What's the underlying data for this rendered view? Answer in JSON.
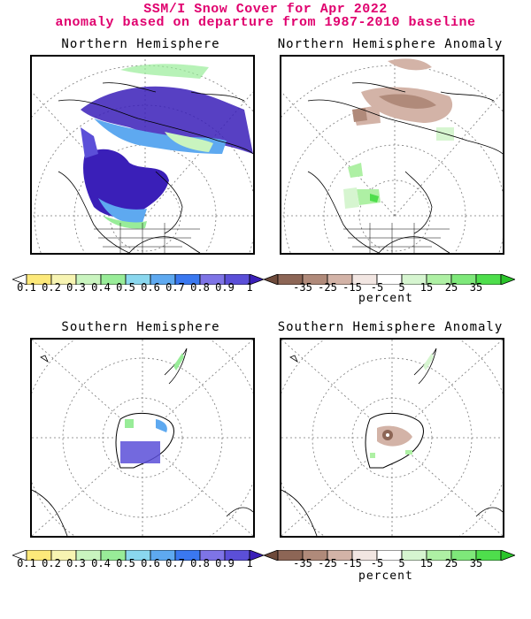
{
  "title_line1": "SSM/I Snow Cover for Apr 2022",
  "title_line2": "anomaly based on departure from 1987-2010 baseline",
  "panels": {
    "nh": {
      "title": "Northern Hemisphere",
      "map_icon": "north-polar-map"
    },
    "nh_anom": {
      "title": "Northern Hemisphere Anomaly",
      "map_icon": "north-polar-anomaly-map"
    },
    "sh": {
      "title": "Southern Hemisphere",
      "map_icon": "south-polar-map"
    },
    "sh_anom": {
      "title": "Southern Hemisphere Anomaly",
      "map_icon": "south-polar-anomaly-map"
    }
  },
  "cover_scale": {
    "labels": [
      "0.1",
      "0.2",
      "0.3",
      "0.4",
      "0.5",
      "0.6",
      "0.7",
      "0.8",
      "0.9",
      "1"
    ],
    "colors": [
      "#ffffff",
      "#fde97a",
      "#f7f4b2",
      "#c9f4bf",
      "#98ec98",
      "#8ad7ee",
      "#5ea9f0",
      "#3a78f0",
      "#7e74e6",
      "#5b4fd8",
      "#3a1fb8"
    ]
  },
  "anom_scale": {
    "labels": [
      "-35",
      "-25",
      "-15",
      "-5",
      "5",
      "15",
      "25",
      "35"
    ],
    "colors": [
      "#6e4a3a",
      "#8d6656",
      "#b08a7a",
      "#d3b3a7",
      "#f2e6e2",
      "#ffffff",
      "#d6f5d0",
      "#aef0a4",
      "#7ee87a",
      "#4ede4c",
      "#2ac42a"
    ],
    "unit": "percent"
  }
}
